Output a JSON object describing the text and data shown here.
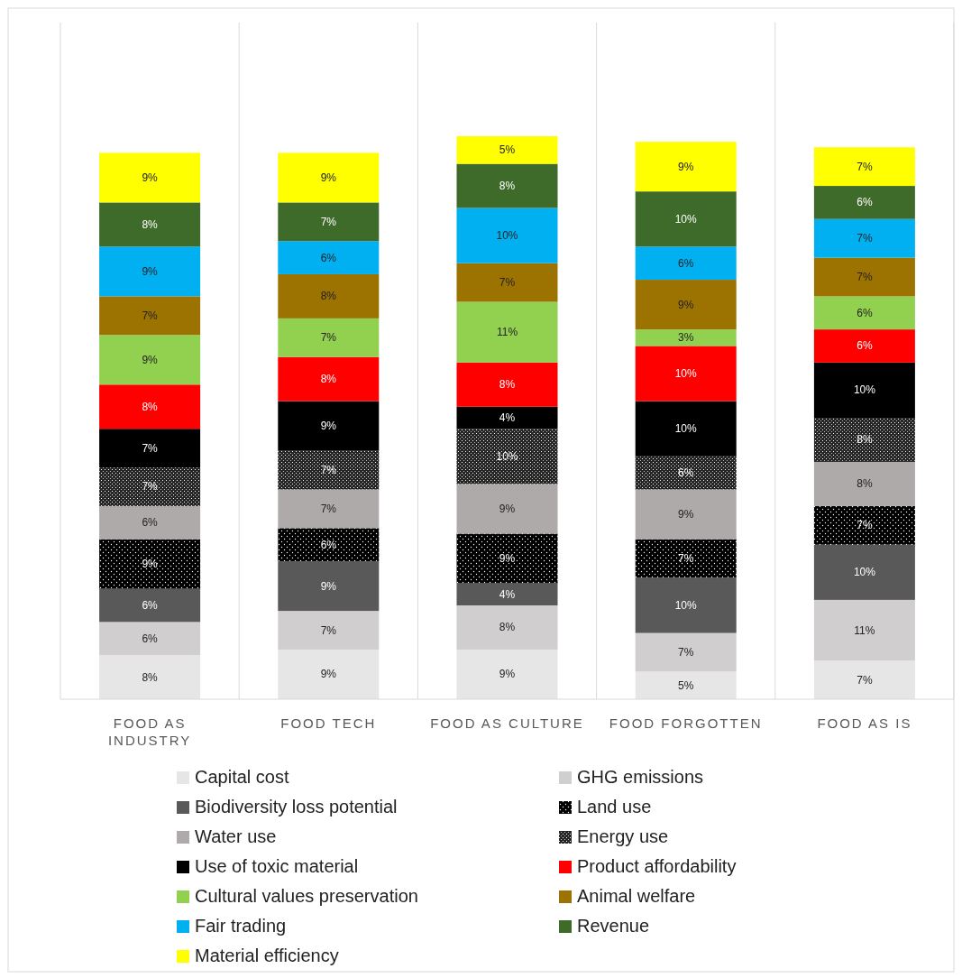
{
  "chart_data": {
    "type": "bar",
    "stacked": true,
    "legend": "bottom",
    "categories": [
      "FOOD AS INDUSTRY",
      "FOOD TECH",
      "FOOD AS CULTURE",
      "FOOD FORGOTTEN",
      "FOOD AS IS"
    ],
    "series": [
      {
        "name": "Capital cost",
        "color": "#e7e6e6",
        "values": [
          8,
          9,
          9,
          5,
          7
        ],
        "value_labels": [
          "8%",
          "9%",
          "9%",
          "5%",
          "7%"
        ]
      },
      {
        "name": "GHG emissions",
        "color": "#d0cece",
        "values": [
          6,
          7,
          8,
          7,
          11
        ],
        "value_labels": [
          "6%",
          "7%",
          "8%",
          "7%",
          "11%"
        ]
      },
      {
        "name": "Biodiversity loss potential",
        "color": "#595959",
        "values": [
          6,
          9,
          4,
          10,
          10
        ],
        "value_labels": [
          "6%",
          "9%",
          "4%",
          "10%",
          "10%"
        ]
      },
      {
        "name": "Land use",
        "color": "#000000",
        "values": [
          9,
          6,
          9,
          7,
          7
        ],
        "value_labels": [
          "9%",
          "6%",
          "9%",
          "7%",
          "7%"
        ]
      },
      {
        "name": "Water use",
        "color": "#aeaaaa",
        "values": [
          6,
          7,
          9,
          9,
          8
        ],
        "value_labels": [
          "6%",
          "7%",
          "9%",
          "9%",
          "8%"
        ]
      },
      {
        "name": "Energy use",
        "color": "#262626",
        "values": [
          7,
          7,
          10,
          6,
          8
        ],
        "value_labels": [
          "7%",
          "7%",
          "10%",
          "6%",
          "8%"
        ]
      },
      {
        "name": "Use of toxic material",
        "color": "#000000",
        "values": [
          7,
          9,
          4,
          10,
          10
        ],
        "value_labels": [
          "7%",
          "9%",
          "4%",
          "10%",
          "10%"
        ]
      },
      {
        "name": "Product affordability",
        "color": "#ff0000",
        "values": [
          8,
          8,
          8,
          10,
          6
        ],
        "value_labels": [
          "8%",
          "8%",
          "8%",
          "10%",
          "6%"
        ]
      },
      {
        "name": "Cultural values preservation",
        "color": "#92d050",
        "values": [
          9,
          7,
          11,
          3,
          6
        ],
        "value_labels": [
          "9%",
          "7%",
          "11%",
          "3%",
          "6%"
        ]
      },
      {
        "name": "Animal welfare",
        "color": "#9c7200",
        "values": [
          7,
          8,
          7,
          9,
          7
        ],
        "value_labels": [
          "7%",
          "8%",
          "7%",
          "9%",
          "7%"
        ]
      },
      {
        "name": "Fair trading",
        "color": "#00b0f0",
        "values": [
          9,
          6,
          10,
          6,
          7
        ],
        "value_labels": [
          "9%",
          "6%",
          "10%",
          "6%",
          "7%"
        ]
      },
      {
        "name": "Revenue",
        "color": "#3f6b2a",
        "values": [
          8,
          7,
          8,
          10,
          6
        ],
        "value_labels": [
          "8%",
          "7%",
          "8%",
          "10%",
          "6%"
        ]
      },
      {
        "name": "Material efficiency",
        "color": "#ffff00",
        "values": [
          9,
          9,
          5,
          9,
          7
        ],
        "value_labels": [
          "9%",
          "9%",
          "5%",
          "9%",
          "7%"
        ]
      }
    ]
  }
}
